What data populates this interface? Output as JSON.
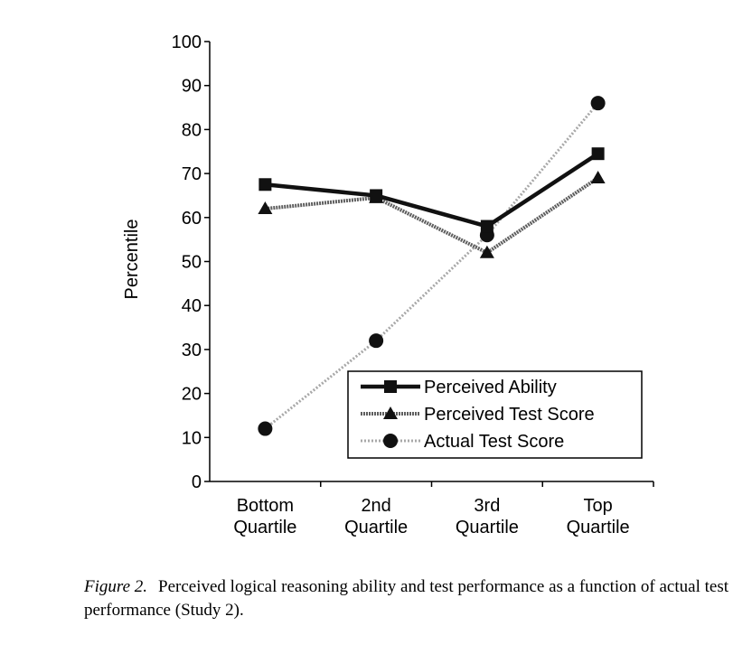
{
  "chart_data": {
    "type": "line",
    "title": "",
    "xlabel": "",
    "ylabel": "Percentile",
    "ylim": [
      0,
      100
    ],
    "yticks": [
      0,
      10,
      20,
      30,
      40,
      50,
      60,
      70,
      80,
      90,
      100
    ],
    "categories": [
      [
        "Bottom",
        "Quartile"
      ],
      [
        "2nd",
        "Quartile"
      ],
      [
        "3rd",
        "Quartile"
      ],
      [
        "Top",
        "Quartile"
      ]
    ],
    "series": [
      {
        "name": "Perceived Ability",
        "marker": "square",
        "color": "#111111",
        "style": "solid-thick",
        "values": [
          67.5,
          65,
          58,
          74.5
        ]
      },
      {
        "name": "Perceived Test Score",
        "marker": "triangle",
        "color": "#5a5a5a",
        "style": "textured",
        "values": [
          62,
          64.5,
          52,
          69
        ]
      },
      {
        "name": "Actual Test Score",
        "marker": "circle",
        "color": "#9a9a9a",
        "style": "dotted-light",
        "values": [
          12,
          32,
          56,
          86
        ]
      }
    ],
    "legend": "bottom-right"
  },
  "caption": {
    "label": "Figure 2.",
    "text": "Perceived logical reasoning ability and test performance as a function of actual test performance (Study 2)."
  }
}
